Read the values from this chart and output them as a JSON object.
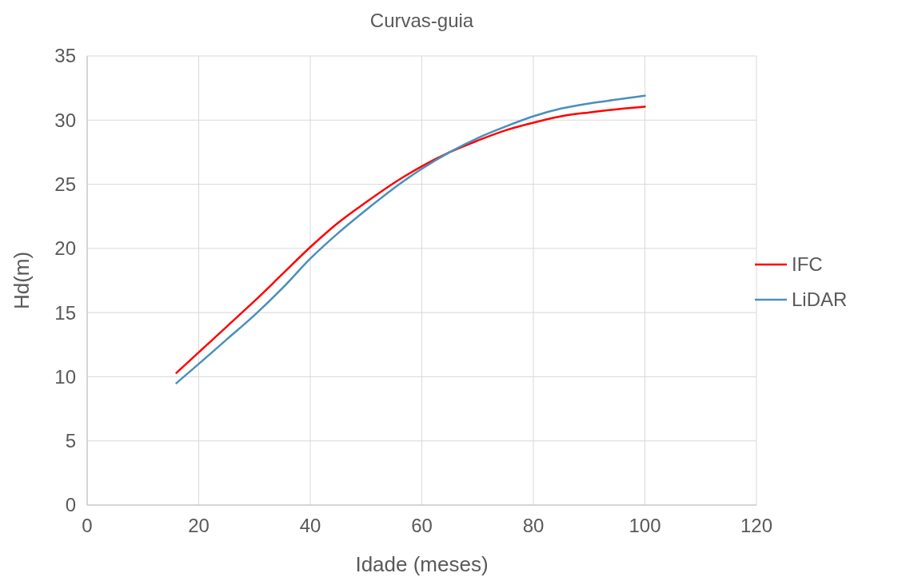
{
  "chart_data": {
    "type": "line",
    "title": "Curvas-guia",
    "xlabel": "Idade (meses)",
    "ylabel": "Hd(m)",
    "x": [
      16,
      20,
      25,
      30,
      35,
      40,
      45,
      50,
      55,
      60,
      65,
      70,
      75,
      80,
      85,
      90,
      95,
      100
    ],
    "series": [
      {
        "name": "IFC",
        "color": "#ff0000",
        "values": [
          10.3,
          11.9,
          13.9,
          15.9,
          18.0,
          20.1,
          22.0,
          23.6,
          25.1,
          26.4,
          27.5,
          28.4,
          29.2,
          29.8,
          30.3,
          30.6,
          30.85,
          31.05
        ]
      },
      {
        "name": "LiDAR",
        "color": "#4a8fbd",
        "values": [
          9.5,
          11.0,
          12.9,
          14.8,
          16.9,
          19.2,
          21.2,
          23.0,
          24.7,
          26.2,
          27.5,
          28.6,
          29.5,
          30.3,
          30.9,
          31.3,
          31.6,
          31.9
        ]
      }
    ],
    "xlim": [
      0,
      120
    ],
    "xticks": [
      0,
      20,
      40,
      60,
      80,
      100,
      120
    ],
    "ylim": [
      0,
      35
    ],
    "yticks": [
      0,
      5,
      10,
      15,
      20,
      25,
      30,
      35
    ],
    "grid": true,
    "legend": "right",
    "marker": "none",
    "line_style": "solid"
  }
}
